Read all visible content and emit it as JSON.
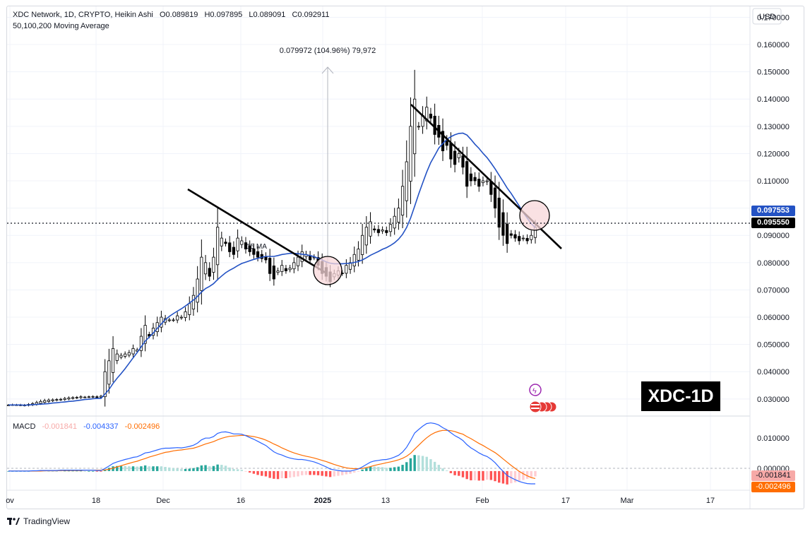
{
  "header": {
    "symbol_line": "XDC Network, 1D, CRYPTO, Heikin Ashi",
    "ohlc": [
      {
        "k": "O",
        "v": "0.089819"
      },
      {
        "k": "H",
        "v": "0.097895"
      },
      {
        "k": "L",
        "v": "0.089091"
      },
      {
        "k": "C",
        "v": "0.092911"
      }
    ],
    "indicator": "50,100,200 Moving Average"
  },
  "currency": "USD",
  "price_badges": {
    "ma": "0.097553",
    "last": "0.095550"
  },
  "macd": {
    "label": "MACD",
    "values": [
      "-0.001841",
      "-0.004337",
      "-0.002496"
    ],
    "colors": [
      "#f7a9a7",
      "#2962ff",
      "#ff6d00"
    ],
    "badges": [
      "-0.001841",
      "-0.002496"
    ],
    "axis_top": "0.010000",
    "axis_zero": "0.000000"
  },
  "annotations": {
    "measure": "0.079972 (104.96%) 79,972",
    "ma_label": "15 MA",
    "chart_name": "XDC-1D"
  },
  "brand": "TradingView",
  "colors": {
    "up": "#ffffff",
    "down": "#000000",
    "ma": "#2352c4",
    "macd": "#2962ff",
    "signal": "#ff6d00",
    "hist_pos_strong": "#26a69a",
    "hist_pos_weak": "#b2dfdb",
    "hist_neg_strong": "#ff5252",
    "hist_neg_weak": "#ffcdd2",
    "circle": "#f8d7da"
  },
  "chart_data": {
    "type": "candlestick",
    "title": "XDC Network, 1D, CRYPTO, Heikin Ashi",
    "x_ticks": [
      "ov",
      "18",
      "Dec",
      "16",
      "2025",
      "13",
      "Feb",
      "17",
      "Mar",
      "17"
    ],
    "y_ticks": [
      "0.030000",
      "0.040000",
      "0.050000",
      "0.060000",
      "0.070000",
      "0.080000",
      "0.090000",
      "0.100000",
      "0.110000",
      "0.120000",
      "0.130000",
      "0.140000",
      "0.150000",
      "0.160000",
      "0.170000"
    ],
    "ylim": [
      0.024,
      0.174
    ],
    "last_price": 0.09555,
    "ma_value": 0.097553,
    "closes": [
      0.0278,
      0.0279,
      0.0278,
      0.0277,
      0.0276,
      0.028,
      0.0283,
      0.0287,
      0.0291,
      0.0294,
      0.0296,
      0.0297,
      0.0298,
      0.0299,
      0.0302,
      0.0304,
      0.0305,
      0.0306,
      0.0308,
      0.0307,
      0.0308,
      0.0309,
      0.0305,
      0.031,
      0.04,
      0.044,
      0.0485,
      0.0465,
      0.046,
      0.0465,
      0.047,
      0.0485,
      0.048,
      0.053,
      0.057,
      0.053,
      0.056,
      0.058,
      0.06,
      0.0595,
      0.059,
      0.059,
      0.0605,
      0.06,
      0.062,
      0.065,
      0.068,
      0.074,
      0.082,
      0.08,
      0.075,
      0.082,
      0.093,
      0.089,
      0.087,
      0.084,
      0.083,
      0.089,
      0.088,
      0.085,
      0.084,
      0.083,
      0.082,
      0.0815,
      0.081,
      0.076,
      0.074,
      0.077,
      0.079,
      0.077,
      0.078,
      0.08,
      0.082,
      0.084,
      0.083,
      0.081,
      0.082,
      0.079,
      0.076,
      0.075,
      0.073,
      0.076,
      0.077,
      0.076,
      0.079,
      0.08,
      0.083,
      0.085,
      0.09,
      0.093,
      0.095,
      0.092,
      0.091,
      0.092,
      0.091,
      0.094,
      0.097,
      0.1,
      0.108,
      0.117,
      0.13,
      0.14,
      0.13,
      0.134,
      0.137,
      0.133,
      0.127,
      0.126,
      0.121,
      0.123,
      0.118,
      0.116,
      0.12,
      0.115,
      0.108,
      0.11,
      0.11,
      0.108,
      0.11,
      0.11,
      0.105,
      0.1,
      0.093,
      0.09,
      0.087,
      0.09,
      0.089,
      0.088,
      0.089,
      0.088,
      0.09,
      0.0929
    ],
    "ma15": [
      0.0278,
      0.0278,
      0.0278,
      0.0278,
      0.0277,
      0.0278,
      0.0279,
      0.028,
      0.0281,
      0.0282,
      0.0283,
      0.0285,
      0.0286,
      0.0288,
      0.0289,
      0.0291,
      0.0292,
      0.0294,
      0.0296,
      0.0298,
      0.0299,
      0.0301,
      0.0302,
      0.0302,
      0.0318,
      0.0335,
      0.0357,
      0.0376,
      0.0393,
      0.0411,
      0.0431,
      0.0451,
      0.047,
      0.0491,
      0.0512,
      0.0527,
      0.0542,
      0.0559,
      0.0575,
      0.0591,
      0.0603,
      0.0613,
      0.0622,
      0.0631,
      0.0641,
      0.0652,
      0.0663,
      0.0676,
      0.0692,
      0.0705,
      0.0713,
      0.0723,
      0.0738,
      0.0751,
      0.0763,
      0.0772,
      0.078,
      0.0789,
      0.0797,
      0.0802,
      0.0807,
      0.0812,
      0.0816,
      0.082,
      0.0823,
      0.0823,
      0.0823,
      0.0826,
      0.083,
      0.0832,
      0.0834,
      0.0834,
      0.0833,
      0.0831,
      0.0829,
      0.0826,
      0.0822,
      0.0816,
      0.081,
      0.0803,
      0.0798,
      0.0796,
      0.0796,
      0.0796,
      0.0797,
      0.0798,
      0.0801,
      0.0804,
      0.081,
      0.0818,
      0.0827,
      0.0834,
      0.0841,
      0.0849,
      0.0855,
      0.0863,
      0.0873,
      0.0886,
      0.0904,
      0.0929,
      0.0964,
      0.1007,
      0.1052,
      0.1092,
      0.1132,
      0.1167,
      0.1193,
      0.122,
      0.1237,
      0.1252,
      0.1262,
      0.1269,
      0.1274,
      0.1275,
      0.1268,
      0.1252,
      0.1234,
      0.1219,
      0.1201,
      0.1185,
      0.1165,
      0.1144,
      0.1121,
      0.1098,
      0.1074,
      0.1054,
      0.1031,
      0.1008,
      0.0984,
      0.0963,
      0.0943,
      0.0928
    ],
    "macd_line": [
      0.0,
      0.0,
      0.0,
      0.0,
      0.0,
      0.0,
      0.0001,
      0.0001,
      0.0002,
      0.0002,
      0.0002,
      0.0002,
      0.0002,
      0.0003,
      0.0003,
      0.0003,
      0.0003,
      0.0003,
      0.0003,
      0.0003,
      0.0003,
      0.0003,
      0.0002,
      0.0002,
      0.0009,
      0.0017,
      0.0026,
      0.0031,
      0.0035,
      0.0039,
      0.0042,
      0.0046,
      0.0048,
      0.0054,
      0.0061,
      0.0063,
      0.0067,
      0.0071,
      0.0075,
      0.0077,
      0.0077,
      0.0078,
      0.0079,
      0.0078,
      0.008,
      0.0083,
      0.0087,
      0.0094,
      0.0105,
      0.0111,
      0.0111,
      0.0116,
      0.0127,
      0.0131,
      0.0132,
      0.0129,
      0.0125,
      0.0125,
      0.0124,
      0.0119,
      0.0113,
      0.0107,
      0.01,
      0.0093,
      0.0086,
      0.0075,
      0.0065,
      0.0058,
      0.0054,
      0.0048,
      0.0044,
      0.0041,
      0.0039,
      0.0039,
      0.0037,
      0.0034,
      0.0031,
      0.0026,
      0.002,
      0.0014,
      0.0007,
      0.0004,
      0.0002,
      0.0,
      0.0,
      0.0,
      0.0003,
      0.0007,
      0.0014,
      0.0022,
      0.003,
      0.0034,
      0.0036,
      0.0038,
      0.0039,
      0.0042,
      0.0047,
      0.0053,
      0.0064,
      0.008,
      0.0103,
      0.0128,
      0.014,
      0.0151,
      0.016,
      0.0162,
      0.016,
      0.0155,
      0.0146,
      0.0139,
      0.0129,
      0.0119,
      0.0112,
      0.0103,
      0.0089,
      0.0078,
      0.007,
      0.0061,
      0.0054,
      0.0049,
      0.004,
      0.0028,
      0.0013,
      -0.0001,
      -0.0015,
      -0.0022,
      -0.0029,
      -0.0035,
      -0.0039,
      -0.0042,
      -0.0043,
      -0.0043
    ],
    "signal_line": [
      0.0,
      0.0,
      0.0,
      0.0,
      0.0,
      0.0,
      0.0,
      0.0,
      0.0,
      0.0001,
      0.0001,
      0.0001,
      0.0001,
      0.0002,
      0.0002,
      0.0002,
      0.0002,
      0.0002,
      0.0002,
      0.0003,
      0.0003,
      0.0003,
      0.0003,
      0.0003,
      0.0004,
      0.0006,
      0.001,
      0.0014,
      0.0018,
      0.0022,
      0.0026,
      0.003,
      0.0033,
      0.0038,
      0.0042,
      0.0047,
      0.0051,
      0.0055,
      0.0059,
      0.0063,
      0.0065,
      0.0068,
      0.007,
      0.0071,
      0.0073,
      0.0075,
      0.0077,
      0.0081,
      0.0086,
      0.0091,
      0.0095,
      0.0099,
      0.0105,
      0.011,
      0.0114,
      0.0117,
      0.0118,
      0.0119,
      0.012,
      0.012,
      0.0118,
      0.0116,
      0.0113,
      0.0109,
      0.0104,
      0.0098,
      0.0091,
      0.0085,
      0.0078,
      0.0072,
      0.0066,
      0.0061,
      0.0057,
      0.0053,
      0.005,
      0.0047,
      0.0044,
      0.004,
      0.0036,
      0.0032,
      0.0027,
      0.0022,
      0.0018,
      0.0014,
      0.0011,
      0.0009,
      0.0008,
      0.0008,
      0.0009,
      0.0012,
      0.0015,
      0.0019,
      0.0022,
      0.0025,
      0.0028,
      0.0031,
      0.0034,
      0.0038,
      0.0043,
      0.005,
      0.006,
      0.0074,
      0.0087,
      0.01,
      0.0112,
      0.0122,
      0.0129,
      0.0134,
      0.0137,
      0.0137,
      0.0136,
      0.0133,
      0.0128,
      0.0124,
      0.0116,
      0.0109,
      0.0101,
      0.0093,
      0.0086,
      0.0078,
      0.007,
      0.0062,
      0.0052,
      0.0041,
      0.003,
      0.0019,
      0.0009,
      -0.0001,
      -0.0009,
      -0.0016,
      -0.0022,
      -0.0025
    ],
    "macd_ylim": [
      -0.0062,
      0.0178
    ]
  }
}
